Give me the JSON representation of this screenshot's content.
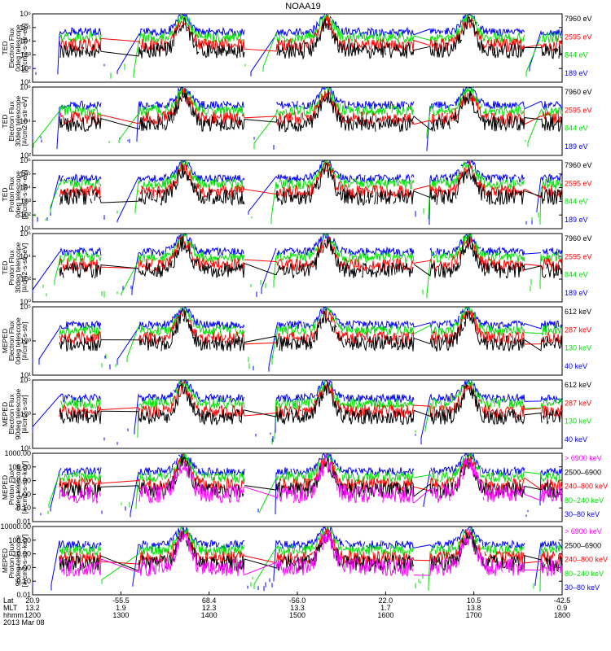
{
  "title": "NOAA19",
  "colors": {
    "black": "#000000",
    "red": "#ff0000",
    "green": "#00e000",
    "blue": "#0000ff",
    "magenta": "#ff00ff"
  },
  "chart_data": [
    {
      "type": "line",
      "ylabel": [
        "TED",
        "Electron Flux",
        "0deg telescope",
        "[#/cm2-s-str-eV]"
      ],
      "yscale": "log",
      "yticks": [
        "10¹",
        "10²",
        "10³",
        "10⁴",
        "10⁵",
        "10⁶"
      ],
      "legend": [
        {
          "label": "7960 eV",
          "color": "black"
        },
        {
          "label": "2595 eV",
          "color": "red"
        },
        {
          "label": "844 eV",
          "color": "green"
        },
        {
          "label": "189 eV",
          "color": "blue"
        }
      ]
    },
    {
      "type": "line",
      "ylabel": [
        "TED",
        "Electron Flux",
        "30deg telescope",
        "[#/cm2-s-str-eV]"
      ],
      "yscale": "log",
      "yticks": [
        "10²",
        "10⁴",
        "10⁶"
      ],
      "legend": [
        {
          "label": "7960 eV",
          "color": "black"
        },
        {
          "label": "2595 eV",
          "color": "red"
        },
        {
          "label": "844 eV",
          "color": "green"
        },
        {
          "label": "189 eV",
          "color": "blue"
        }
      ]
    },
    {
      "type": "line",
      "ylabel": [
        "TED",
        "Proton Flux",
        "0deg telescope",
        "[#/cm2-s-str-eV]"
      ],
      "yscale": "log",
      "yticks": [
        "10¹",
        "10²",
        "10³",
        "10⁴",
        "10⁵",
        "10⁶"
      ],
      "legend": [
        {
          "label": "7960 eV",
          "color": "black"
        },
        {
          "label": "2595 eV",
          "color": "red"
        },
        {
          "label": "844 eV",
          "color": "green"
        },
        {
          "label": "189 eV",
          "color": "blue"
        }
      ]
    },
    {
      "type": "line",
      "ylabel": [
        "TED",
        "Proton Flux",
        "30deg telescope",
        "[#/cm2-s-str-eV]"
      ],
      "yscale": "log",
      "yticks": [
        "10⁰",
        "10²",
        "10⁴",
        "10⁶"
      ],
      "legend": [
        {
          "label": "7960 eV",
          "color": "black"
        },
        {
          "label": "2595 eV",
          "color": "red"
        },
        {
          "label": "844 eV",
          "color": "green"
        },
        {
          "label": "189 eV",
          "color": "blue"
        }
      ]
    },
    {
      "type": "line",
      "ylabel": [
        "MEPED",
        "Electron Flux",
        "0deg telescope",
        "[#/cm2-s-str]"
      ],
      "yscale": "log",
      "yticks": [
        "10¹",
        "10³",
        "10⁵"
      ],
      "legend": [
        {
          "label": "612 keV",
          "color": "black"
        },
        {
          "label": "287 keV",
          "color": "red"
        },
        {
          "label": "130 keV",
          "color": "green"
        },
        {
          "label": "40 keV",
          "color": "blue"
        }
      ]
    },
    {
      "type": "line",
      "ylabel": [
        "MEPED",
        "Electron Flux",
        "90deg telescope",
        "[#/cm2-s-str]"
      ],
      "yscale": "log",
      "yticks": [
        "10¹",
        "10³",
        "10⁵"
      ],
      "legend": [
        {
          "label": "612 keV",
          "color": "black"
        },
        {
          "label": "287 keV",
          "color": "red"
        },
        {
          "label": "130 keV",
          "color": "green"
        },
        {
          "label": "40 keV",
          "color": "blue"
        }
      ]
    },
    {
      "type": "line",
      "ylabel": [
        "MEPED",
        "Proton Flux",
        "0deg telescope",
        "[#/cm2-s-str-keV]"
      ],
      "yscale": "log",
      "yticks": [
        "0.01",
        "0.10",
        "1.00",
        "10.00",
        "100.00",
        "1000.00"
      ],
      "legend": [
        {
          "label": "> 6900 keV",
          "color": "magenta"
        },
        {
          "label": "2500–6900",
          "color": "black"
        },
        {
          "label": "240–800 keV",
          "color": "red"
        },
        {
          "label": "80–240 keV",
          "color": "green"
        },
        {
          "label": "30–80 keV",
          "color": "blue"
        }
      ]
    },
    {
      "type": "line",
      "ylabel": [
        "MEPED",
        "Proton Flux",
        "90deg telescope",
        "[#/cm2-s-str-keV]"
      ],
      "yscale": "log",
      "yticks": [
        "0.01",
        "0.10",
        "1.00",
        "10.00",
        "100.00",
        "10000.00"
      ],
      "legend": [
        {
          "label": "> 6900 keV",
          "color": "magenta"
        },
        {
          "label": "2500–6900",
          "color": "black"
        },
        {
          "label": "240–800 keV",
          "color": "red"
        },
        {
          "label": "80–240 keV",
          "color": "green"
        },
        {
          "label": "30–80 keV",
          "color": "blue"
        }
      ]
    }
  ],
  "xaxis": {
    "row_labels": [
      "Lat",
      "MLT",
      "hhmm"
    ],
    "ticks": [
      {
        "lat": "20.9",
        "mlt": "13.2",
        "hhmm": "1200"
      },
      {
        "lat": "-55.5",
        "mlt": "1.9",
        "hhmm": "1300"
      },
      {
        "lat": "68.4",
        "mlt": "12.3",
        "hhmm": "1400"
      },
      {
        "lat": "-56.0",
        "mlt": "13.3",
        "hhmm": "1500"
      },
      {
        "lat": "22.0",
        "mlt": "1.7",
        "hhmm": "1600"
      },
      {
        "lat": "10.5",
        "mlt": "13.8",
        "hhmm": "1700"
      },
      {
        "lat": "-42.5",
        "mlt": "0.9",
        "hhmm": "1800"
      }
    ],
    "date": "2013 Mar 08"
  }
}
